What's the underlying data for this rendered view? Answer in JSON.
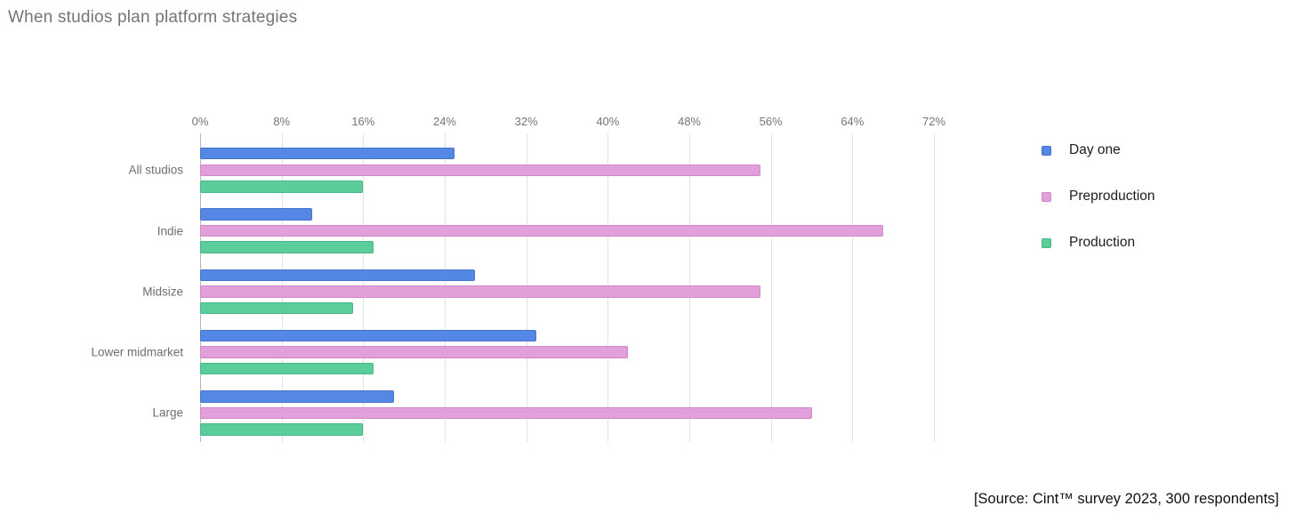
{
  "title": "When studios plan platform strategies",
  "source_note": "[Source: Cint™ survey 2023, 300 respondents]",
  "colors": {
    "background": "#ffffff",
    "title_text": "#757575",
    "axis_text": "#757575",
    "category_text": "#6e6e6e",
    "gridline": "#e2e2e2",
    "axis_line": "#b7b7b7",
    "legend_text": "#1d1d1d",
    "day_one_fill": "#5588E4",
    "day_one_border": "#4573CE",
    "preproduction_fill": "#E2A0DB",
    "preproduction_border": "#D285C9",
    "production_fill": "#5BCD9B",
    "production_border": "#42B987"
  },
  "chart_data": {
    "type": "bar",
    "orientation": "horizontal",
    "title": "When studios plan platform strategies",
    "categories": [
      "All studios",
      "Indie",
      "Midsize",
      "Lower midmarket",
      "Large"
    ],
    "series": [
      {
        "name": "Day one",
        "color": "#5588E4",
        "border": "#4573CE",
        "values": [
          25,
          11,
          27,
          33,
          19
        ]
      },
      {
        "name": "Preproduction",
        "color": "#E2A0DB",
        "border": "#D285C9",
        "values": [
          55,
          67,
          55,
          42,
          60
        ]
      },
      {
        "name": "Production",
        "color": "#5BCD9B",
        "border": "#42B987",
        "values": [
          16,
          17,
          15,
          17,
          16
        ]
      }
    ],
    "x_axis": {
      "unit": "%",
      "min": 0,
      "max": 72,
      "tick_step": 8,
      "tick_labels": [
        "0%",
        "8%",
        "16%",
        "24%",
        "32%",
        "40%",
        "48%",
        "56%",
        "64%",
        "72%"
      ]
    },
    "grid": true,
    "legend_position": "right"
  }
}
